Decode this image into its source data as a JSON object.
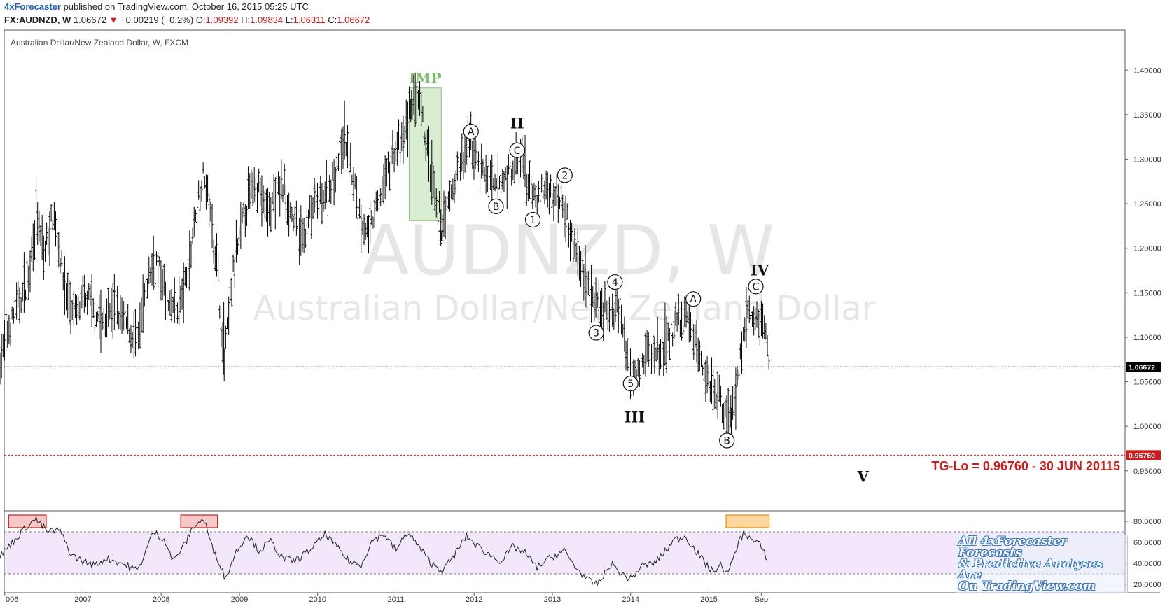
{
  "header": {
    "author": "4xForecaster",
    "published": "published on TradingView.com, October 16, 2015 05:25 UTC"
  },
  "quote": {
    "symbol": "FX:AUDNZD, W",
    "last": "1.06672",
    "change": "−0.00219 (−0.2%)",
    "o_label": "O:",
    "o": "1.09392",
    "h_label": "H:",
    "h": "1.09834",
    "l_label": "L:",
    "l": "1.06311",
    "c_label": "C:",
    "c": "1.06672"
  },
  "colors": {
    "bars": "#000000",
    "target_line": "#d11b1b",
    "imp_box": "#c9e6c0",
    "imp_label": "#7dbb6b",
    "rsi_band": "#f3e8fb",
    "overbought_box": "#f6c8c8",
    "current_box": "#ffd6a0",
    "promo_text": "#3b78c4"
  },
  "chart_data": {
    "type": "bar",
    "title": "Australian Dollar/New Zealand Dollar, W, FXCM",
    "watermark_symbol": "AUDNZD, W",
    "watermark_name": "Australian Dollar/New Zealand Dollar",
    "y_ticks": [
      "1.40000",
      "1.35000",
      "1.30000",
      "1.25000",
      "1.20000",
      "1.15000",
      "1.10000",
      "1.05000",
      "1.00000",
      "0.95000"
    ],
    "ylim": [
      0.905,
      1.445
    ],
    "x_ticks": [
      "006",
      "2007",
      "2008",
      "2009",
      "2010",
      "2011",
      "2012",
      "2013",
      "2014",
      "2015",
      "Sep"
    ],
    "x_tick_years": [
      2006.0,
      2007.0,
      2008.0,
      2009.0,
      2010.0,
      2011.0,
      2012.0,
      2013.0,
      2014.0,
      2015.0,
      2015.67
    ],
    "xlim": [
      2005.94,
      2020.83
    ],
    "series": [
      {
        "points": [
          [
            2005.94,
            1.075
          ],
          [
            2006.1,
            1.12
          ],
          [
            2006.3,
            1.165
          ],
          [
            2006.4,
            1.238
          ],
          [
            2006.5,
            1.19
          ],
          [
            2006.62,
            1.24
          ],
          [
            2006.78,
            1.15
          ],
          [
            2006.9,
            1.125
          ],
          [
            2007.05,
            1.145
          ],
          [
            2007.25,
            1.115
          ],
          [
            2007.4,
            1.135
          ],
          [
            2007.6,
            1.108
          ],
          [
            2007.7,
            1.095
          ],
          [
            2007.85,
            1.175
          ],
          [
            2007.95,
            1.185
          ],
          [
            2008.1,
            1.13
          ],
          [
            2008.25,
            1.14
          ],
          [
            2008.35,
            1.175
          ],
          [
            2008.45,
            1.25
          ],
          [
            2008.55,
            1.285
          ],
          [
            2008.62,
            1.245
          ],
          [
            2008.72,
            1.18
          ],
          [
            2008.8,
            1.065
          ],
          [
            2008.9,
            1.16
          ],
          [
            2009.05,
            1.235
          ],
          [
            2009.2,
            1.28
          ],
          [
            2009.35,
            1.24
          ],
          [
            2009.55,
            1.27
          ],
          [
            2009.7,
            1.23
          ],
          [
            2009.8,
            1.21
          ],
          [
            2009.95,
            1.25
          ],
          [
            2010.1,
            1.26
          ],
          [
            2010.2,
            1.28
          ],
          [
            2010.35,
            1.325
          ],
          [
            2010.45,
            1.28
          ],
          [
            2010.55,
            1.235
          ],
          [
            2010.65,
            1.215
          ],
          [
            2010.8,
            1.26
          ],
          [
            2010.95,
            1.305
          ],
          [
            2011.1,
            1.32
          ],
          [
            2011.2,
            1.365
          ],
          [
            2011.3,
            1.36
          ],
          [
            2011.4,
            1.31
          ],
          [
            2011.52,
            1.245
          ],
          [
            2011.6,
            1.23
          ],
          [
            2011.75,
            1.275
          ],
          [
            2011.95,
            1.32
          ],
          [
            2012.05,
            1.3
          ],
          [
            2012.25,
            1.265
          ],
          [
            2012.45,
            1.285
          ],
          [
            2012.6,
            1.3
          ],
          [
            2012.75,
            1.255
          ],
          [
            2012.9,
            1.265
          ],
          [
            2013.0,
            1.26
          ],
          [
            2013.12,
            1.26
          ],
          [
            2013.25,
            1.21
          ],
          [
            2013.4,
            1.17
          ],
          [
            2013.55,
            1.135
          ],
          [
            2013.65,
            1.13
          ],
          [
            2013.75,
            1.125
          ],
          [
            2013.85,
            1.14
          ],
          [
            2013.95,
            1.075
          ],
          [
            2014.05,
            1.065
          ],
          [
            2014.2,
            1.08
          ],
          [
            2014.4,
            1.085
          ],
          [
            2014.6,
            1.115
          ],
          [
            2014.75,
            1.12
          ],
          [
            2014.9,
            1.07
          ],
          [
            2015.05,
            1.045
          ],
          [
            2015.2,
            1.02
          ],
          [
            2015.28,
            1.005
          ],
          [
            2015.4,
            1.075
          ],
          [
            2015.5,
            1.13
          ],
          [
            2015.6,
            1.115
          ],
          [
            2015.7,
            1.12
          ],
          [
            2015.78,
            1.07
          ]
        ]
      }
    ],
    "last_price": 1.06672,
    "last_price_label": "1.06672",
    "target_price": 0.9676,
    "target_price_label": "0.96760",
    "target_text": "TG-Lo = 0.96760 - 30 JUN 20115",
    "rsi": {
      "ylim": [
        12,
        90
      ],
      "y_ticks": [
        "80.0000",
        "60.0000",
        "40.0000",
        "20.0000"
      ],
      "upper": 70,
      "lower": 30,
      "points": [
        [
          2005.94,
          47
        ],
        [
          2006.1,
          60
        ],
        [
          2006.3,
          77
        ],
        [
          2006.4,
          82
        ],
        [
          2006.55,
          70
        ],
        [
          2006.7,
          72
        ],
        [
          2006.85,
          48
        ],
        [
          2007.0,
          42
        ],
        [
          2007.15,
          38
        ],
        [
          2007.3,
          45
        ],
        [
          2007.5,
          40
        ],
        [
          2007.7,
          33
        ],
        [
          2007.9,
          70
        ],
        [
          2008.05,
          62
        ],
        [
          2008.15,
          42
        ],
        [
          2008.3,
          58
        ],
        [
          2008.42,
          76
        ],
        [
          2008.55,
          82
        ],
        [
          2008.65,
          55
        ],
        [
          2008.75,
          40
        ],
        [
          2008.82,
          25
        ],
        [
          2008.95,
          50
        ],
        [
          2009.1,
          68
        ],
        [
          2009.25,
          52
        ],
        [
          2009.4,
          61
        ],
        [
          2009.55,
          45
        ],
        [
          2009.7,
          42
        ],
        [
          2009.85,
          50
        ],
        [
          2010.0,
          60
        ],
        [
          2010.1,
          68
        ],
        [
          2010.25,
          55
        ],
        [
          2010.4,
          42
        ],
        [
          2010.55,
          38
        ],
        [
          2010.7,
          62
        ],
        [
          2010.85,
          68
        ],
        [
          2011.0,
          52
        ],
        [
          2011.15,
          70
        ],
        [
          2011.3,
          55
        ],
        [
          2011.45,
          40
        ],
        [
          2011.6,
          33
        ],
        [
          2011.75,
          48
        ],
        [
          2011.9,
          66
        ],
        [
          2012.05,
          56
        ],
        [
          2012.2,
          48
        ],
        [
          2012.35,
          42
        ],
        [
          2012.5,
          56
        ],
        [
          2012.65,
          50
        ],
        [
          2012.8,
          36
        ],
        [
          2012.95,
          44
        ],
        [
          2013.15,
          52
        ],
        [
          2013.3,
          36
        ],
        [
          2013.45,
          24
        ],
        [
          2013.55,
          20
        ],
        [
          2013.62,
          24
        ],
        [
          2013.75,
          40
        ],
        [
          2013.88,
          30
        ],
        [
          2014.0,
          25
        ],
        [
          2014.15,
          38
        ],
        [
          2014.3,
          40
        ],
        [
          2014.45,
          52
        ],
        [
          2014.55,
          62
        ],
        [
          2014.7,
          66
        ],
        [
          2014.85,
          50
        ],
        [
          2014.95,
          40
        ],
        [
          2015.05,
          32
        ],
        [
          2015.15,
          38
        ],
        [
          2015.25,
          30
        ],
        [
          2015.35,
          55
        ],
        [
          2015.45,
          70
        ],
        [
          2015.55,
          62
        ],
        [
          2015.65,
          58
        ],
        [
          2015.75,
          44
        ]
      ]
    },
    "annotations": {
      "imp_label": "IMP",
      "waves": [
        {
          "text": "I",
          "x": 2011.58,
          "y": 1.213,
          "circled": false,
          "size": "big"
        },
        {
          "text": "II",
          "x": 2012.55,
          "y": 1.34,
          "circled": false,
          "size": "big"
        },
        {
          "text": "III",
          "x": 2014.05,
          "y": 1.01,
          "circled": false,
          "size": "big"
        },
        {
          "text": "IV",
          "x": 2015.65,
          "y": 1.175,
          "circled": false,
          "size": "big"
        },
        {
          "text": "V",
          "x": 2016.97,
          "y": 0.943,
          "circled": false,
          "size": "big"
        },
        {
          "text": "A",
          "x": 2011.96,
          "y": 1.331,
          "circled": true
        },
        {
          "text": "C",
          "x": 2012.55,
          "y": 1.31,
          "circled": true
        },
        {
          "text": "B",
          "x": 2012.28,
          "y": 1.247,
          "circled": true
        },
        {
          "text": "1",
          "x": 2012.75,
          "y": 1.232,
          "circled": true
        },
        {
          "text": "2",
          "x": 2013.16,
          "y": 1.282,
          "circled": true
        },
        {
          "text": "4",
          "x": 2013.8,
          "y": 1.162,
          "circled": true
        },
        {
          "text": "3",
          "x": 2013.56,
          "y": 1.105,
          "circled": true
        },
        {
          "text": "5",
          "x": 2014.0,
          "y": 1.048,
          "circled": true
        },
        {
          "text": "A",
          "x": 2014.8,
          "y": 1.143,
          "circled": true
        },
        {
          "text": "C",
          "x": 2015.6,
          "y": 1.157,
          "circled": true
        },
        {
          "text": "B",
          "x": 2015.23,
          "y": 0.984,
          "circled": true
        }
      ]
    }
  },
  "promo": {
    "line1": "All 4xForecaster Forecasts",
    "line2": "& Predictive Analyses Are",
    "line3": "On TradingView.com"
  }
}
